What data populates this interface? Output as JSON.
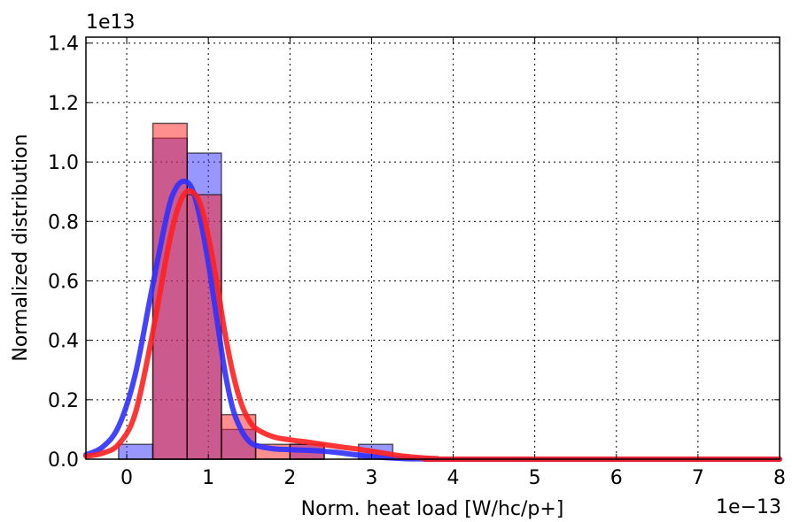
{
  "chart_data": {
    "type": "bar",
    "title": "",
    "xlabel": "Norm. heat load [W/hc/p+]",
    "ylabel": "Normalized distribution",
    "x_offset_label": "1e−13",
    "y_offset_label": "1e13",
    "xlim": [
      -0.5,
      8.0
    ],
    "ylim": [
      0.0,
      1.42
    ],
    "x_ticks": [
      0,
      1,
      2,
      3,
      4,
      5,
      6,
      7,
      8
    ],
    "x_tick_labels": [
      "0",
      "1",
      "2",
      "3",
      "4",
      "5",
      "6",
      "7",
      "8"
    ],
    "y_ticks": [
      0.0,
      0.2,
      0.4,
      0.6,
      0.8,
      1.0,
      1.2,
      1.4
    ],
    "y_tick_labels": [
      "0.0",
      "0.2",
      "0.4",
      "0.6",
      "0.8",
      "1.0",
      "1.2",
      "1.4"
    ],
    "grid": true,
    "grid_style": "dotted",
    "histogram_bins": [
      [
        -0.1,
        0.32
      ],
      [
        0.32,
        0.74
      ],
      [
        0.74,
        1.16
      ],
      [
        1.16,
        1.58
      ],
      [
        1.58,
        2.0
      ],
      [
        2.0,
        2.42
      ],
      [
        2.42,
        2.84
      ],
      [
        2.84,
        3.26
      ]
    ],
    "series": [
      {
        "color": "#3030ff",
        "bar_values": [
          0.05,
          1.08,
          1.03,
          0.1,
          0.0,
          0.05,
          0.0,
          0.05
        ],
        "curve": {
          "x": [
            -0.5,
            -0.3,
            -0.1,
            0.1,
            0.3,
            0.5,
            0.6,
            0.7,
            0.8,
            0.9,
            1.0,
            1.1,
            1.2,
            1.3,
            1.4,
            1.5,
            1.6,
            1.8,
            2.0,
            2.2,
            2.4,
            2.6,
            2.8,
            3.0,
            3.2,
            3.4,
            3.6,
            3.8,
            4.0,
            8.0
          ],
          "y": [
            0.015,
            0.04,
            0.11,
            0.28,
            0.56,
            0.83,
            0.91,
            0.935,
            0.91,
            0.81,
            0.66,
            0.48,
            0.3,
            0.17,
            0.1,
            0.06,
            0.045,
            0.035,
            0.032,
            0.03,
            0.027,
            0.022,
            0.015,
            0.009,
            0.005,
            0.002,
            0.001,
            0.0,
            0.0,
            0.0
          ]
        }
      },
      {
        "color": "#ff2020",
        "bar_values": [
          0.0,
          1.13,
          0.89,
          0.15,
          0.05,
          0.05,
          0.0,
          0.0
        ],
        "curve": {
          "x": [
            -0.5,
            -0.3,
            -0.1,
            0.1,
            0.3,
            0.5,
            0.6,
            0.7,
            0.8,
            0.9,
            1.0,
            1.1,
            1.2,
            1.3,
            1.4,
            1.5,
            1.6,
            1.8,
            2.0,
            2.2,
            2.4,
            2.6,
            2.8,
            3.0,
            3.2,
            3.4,
            3.6,
            3.8,
            4.0,
            8.0
          ],
          "y": [
            0.01,
            0.02,
            0.05,
            0.15,
            0.4,
            0.7,
            0.82,
            0.89,
            0.9,
            0.86,
            0.75,
            0.6,
            0.43,
            0.29,
            0.19,
            0.13,
            0.1,
            0.075,
            0.065,
            0.058,
            0.05,
            0.042,
            0.035,
            0.027,
            0.018,
            0.01,
            0.005,
            0.002,
            0.0,
            0.0
          ]
        }
      }
    ]
  }
}
